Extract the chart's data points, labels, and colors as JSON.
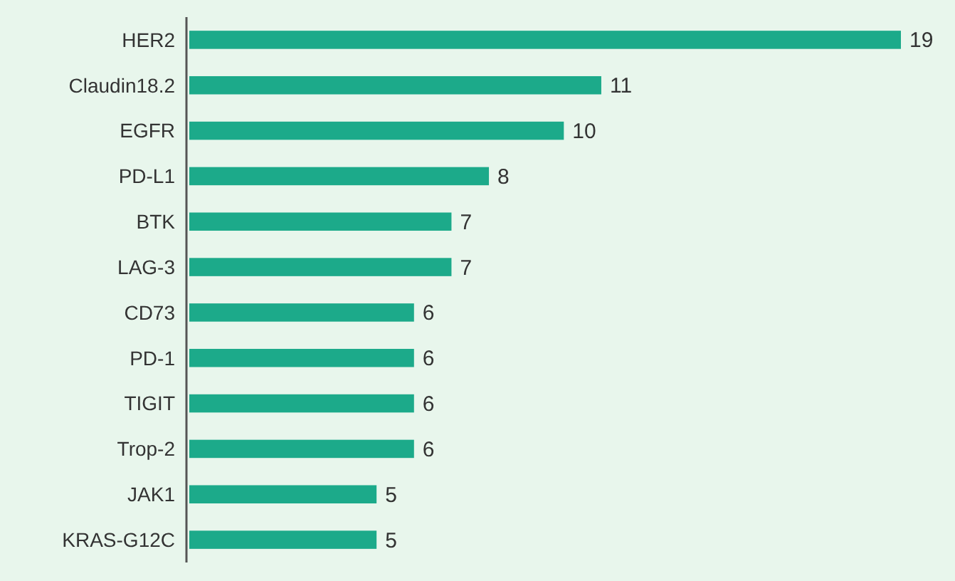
{
  "chart_data": {
    "type": "bar",
    "orientation": "horizontal",
    "categories": [
      "HER2",
      "Claudin18.2",
      "EGFR",
      "PD-L1",
      "BTK",
      "LAG-3",
      "CD73",
      "PD-1",
      "TIGIT",
      "Trop-2",
      "JAK1",
      "KRAS-G12C"
    ],
    "values": [
      19,
      11,
      10,
      8,
      7,
      7,
      6,
      6,
      6,
      6,
      5,
      5
    ],
    "color": "#1caa8a",
    "data_labels": true
  }
}
